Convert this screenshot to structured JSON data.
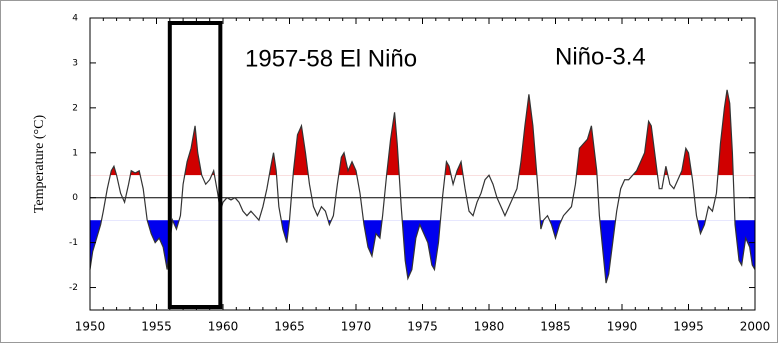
{
  "chart_data": {
    "type": "anomaly-line",
    "y_label": "Temperature (°C)",
    "annotations": [
      "1957-58 El Niño",
      "Niño-3.4"
    ],
    "highlight_x": [
      1956,
      1959.8
    ],
    "upper_threshold": 0.5,
    "lower_threshold": -0.5,
    "warm_color": "#d00000",
    "cold_color": "#0000ee",
    "line_color": "#333333",
    "xlim": [
      1950,
      2000
    ],
    "xticks": [
      1950,
      1955,
      1960,
      1965,
      1970,
      1975,
      1980,
      1985,
      1990,
      1995,
      2000
    ],
    "ylim": [
      -2.5,
      4
    ],
    "yticks": [
      -2,
      -1,
      0,
      1,
      2,
      3,
      4
    ],
    "x": [
      1950.0,
      1950.2,
      1950.5,
      1950.8,
      1951.0,
      1951.3,
      1951.6,
      1951.8,
      1952.0,
      1952.3,
      1952.6,
      1952.9,
      1953.1,
      1953.4,
      1953.7,
      1954.0,
      1954.3,
      1954.6,
      1954.9,
      1955.2,
      1955.5,
      1955.8,
      1956.0,
      1956.2,
      1956.5,
      1956.8,
      1957.0,
      1957.3,
      1957.6,
      1957.9,
      1958.1,
      1958.4,
      1958.7,
      1959.0,
      1959.3,
      1959.6,
      1959.8,
      1960.0,
      1960.3,
      1960.6,
      1960.9,
      1961.2,
      1961.5,
      1961.8,
      1962.1,
      1962.4,
      1962.7,
      1963.0,
      1963.3,
      1963.6,
      1963.8,
      1964.0,
      1964.2,
      1964.5,
      1964.8,
      1965.0,
      1965.3,
      1965.6,
      1965.9,
      1966.2,
      1966.5,
      1966.8,
      1967.1,
      1967.4,
      1967.7,
      1968.0,
      1968.3,
      1968.6,
      1968.9,
      1969.1,
      1969.4,
      1969.7,
      1970.0,
      1970.3,
      1970.6,
      1970.9,
      1971.2,
      1971.5,
      1971.8,
      1972.0,
      1972.3,
      1972.6,
      1972.9,
      1973.1,
      1973.4,
      1973.7,
      1973.9,
      1974.2,
      1974.5,
      1974.8,
      1975.1,
      1975.4,
      1975.7,
      1975.9,
      1976.2,
      1976.5,
      1976.8,
      1977.0,
      1977.3,
      1977.6,
      1977.9,
      1978.2,
      1978.5,
      1978.8,
      1979.1,
      1979.4,
      1979.7,
      1980.0,
      1980.3,
      1980.6,
      1980.9,
      1981.2,
      1981.5,
      1981.8,
      1982.1,
      1982.4,
      1982.7,
      1983.0,
      1983.3,
      1983.6,
      1983.9,
      1984.1,
      1984.4,
      1984.7,
      1985.0,
      1985.3,
      1985.6,
      1985.9,
      1986.2,
      1986.5,
      1986.8,
      1987.1,
      1987.4,
      1987.7,
      1987.9,
      1988.1,
      1988.3,
      1988.6,
      1988.8,
      1989.0,
      1989.3,
      1989.6,
      1989.9,
      1990.2,
      1990.5,
      1990.8,
      1991.1,
      1991.4,
      1991.7,
      1992.0,
      1992.2,
      1992.5,
      1992.8,
      1993.0,
      1993.3,
      1993.6,
      1993.9,
      1994.2,
      1994.5,
      1994.8,
      1995.0,
      1995.3,
      1995.6,
      1995.9,
      1996.2,
      1996.5,
      1996.8,
      1997.1,
      1997.4,
      1997.7,
      1997.9,
      1998.1,
      1998.3,
      1998.5,
      1998.8,
      1999.0,
      1999.3,
      1999.6,
      1999.8,
      2000.0
    ],
    "values": [
      -1.6,
      -1.2,
      -0.9,
      -0.6,
      -0.3,
      0.2,
      0.6,
      0.7,
      0.5,
      0.1,
      -0.1,
      0.3,
      0.6,
      0.55,
      0.6,
      0.2,
      -0.5,
      -0.8,
      -1.0,
      -0.9,
      -1.1,
      -1.6,
      -1.0,
      -0.5,
      -0.7,
      -0.4,
      0.3,
      0.8,
      1.1,
      1.6,
      1.0,
      0.5,
      0.3,
      0.4,
      0.6,
      0.1,
      -0.3,
      -0.1,
      0.0,
      -0.05,
      0.0,
      -0.1,
      -0.3,
      -0.4,
      -0.3,
      -0.4,
      -0.5,
      -0.2,
      0.2,
      0.7,
      1.0,
      0.6,
      -0.2,
      -0.7,
      -1.0,
      -0.5,
      0.6,
      1.4,
      1.6,
      1.0,
      0.3,
      -0.2,
      -0.4,
      -0.2,
      -0.3,
      -0.6,
      -0.4,
      0.3,
      0.9,
      1.0,
      0.6,
      0.8,
      0.6,
      0.1,
      -0.6,
      -1.1,
      -1.3,
      -0.8,
      -0.9,
      -0.4,
      0.5,
      1.3,
      1.9,
      1.2,
      -0.2,
      -1.4,
      -1.8,
      -1.6,
      -0.9,
      -0.6,
      -0.8,
      -1.0,
      -1.5,
      -1.6,
      -1.0,
      0.0,
      0.8,
      0.7,
      0.3,
      0.6,
      0.8,
      0.2,
      -0.3,
      -0.4,
      -0.1,
      0.1,
      0.4,
      0.5,
      0.3,
      0.0,
      -0.2,
      -0.4,
      -0.2,
      0.0,
      0.2,
      0.8,
      1.6,
      2.3,
      1.6,
      0.5,
      -0.7,
      -0.5,
      -0.4,
      -0.6,
      -0.9,
      -0.6,
      -0.4,
      -0.3,
      -0.2,
      0.3,
      1.1,
      1.2,
      1.3,
      1.6,
      1.1,
      0.6,
      -0.4,
      -1.3,
      -1.9,
      -1.7,
      -1.0,
      -0.3,
      0.2,
      0.4,
      0.4,
      0.5,
      0.6,
      0.8,
      1.0,
      1.7,
      1.6,
      0.9,
      0.2,
      0.2,
      0.7,
      0.3,
      0.2,
      0.4,
      0.6,
      1.1,
      1.0,
      0.4,
      -0.4,
      -0.8,
      -0.6,
      -0.2,
      -0.3,
      0.1,
      1.2,
      2.0,
      2.4,
      2.1,
      1.0,
      -0.6,
      -1.4,
      -1.5,
      -0.9,
      -1.1,
      -1.5,
      -1.6
    ]
  }
}
